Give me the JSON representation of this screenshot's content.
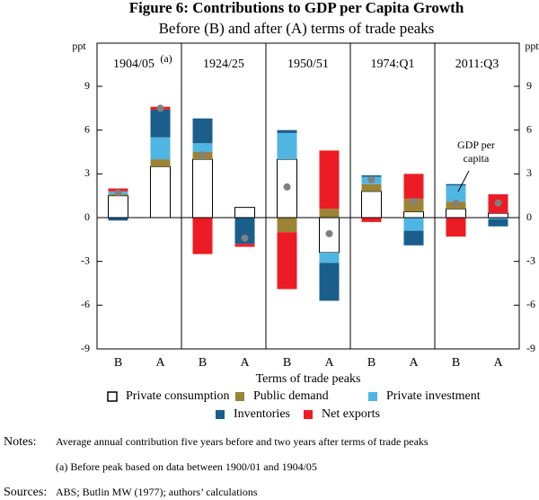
{
  "chart_data": {
    "type": "bar",
    "stacked": true,
    "title": "Figure 6: Contributions to GDP per Capita Growth",
    "subtitle": "Before (B) and after (A) terms of trade peaks",
    "y_label": "ppt",
    "x_label": "Terms of trade peaks",
    "panels": [
      "1904/05",
      "1924/25",
      "1950/51",
      "1974:Q1",
      "2011:Q3"
    ],
    "panel_note": "(a)",
    "categories": [
      "B",
      "A",
      "B",
      "A",
      "B",
      "A",
      "B",
      "A",
      "B",
      "A"
    ],
    "series": [
      {
        "name": "Private consumption",
        "color": "#ffffff",
        "values": [
          1.5,
          3.5,
          4.0,
          0.7,
          4.0,
          -2.4,
          1.8,
          0.4,
          0.6,
          0.3
        ]
      },
      {
        "name": "Public demand",
        "color": "#9c8435",
        "values": [
          0.1,
          0.5,
          0.5,
          0,
          -1.0,
          0.6,
          0.5,
          0.9,
          0.5,
          0
        ]
      },
      {
        "name": "Private investment",
        "color": "#4fb6e3",
        "values": [
          0.2,
          1.5,
          0.6,
          0,
          1.8,
          -0.7,
          0.5,
          -0.9,
          1.1,
          -0.1
        ]
      },
      {
        "name": "Inventories",
        "color": "#1a5e8c",
        "values": [
          -0.2,
          1.9,
          1.7,
          -1.8,
          0.2,
          -2.6,
          0.1,
          -1.0,
          0.1,
          -0.5
        ]
      },
      {
        "name": "Net exports",
        "color": "#ed1c24",
        "values": [
          0.2,
          0.2,
          -2.5,
          -0.2,
          -3.9,
          4.0,
          -0.3,
          1.7,
          -1.3,
          1.3
        ]
      }
    ],
    "gdp": {
      "color": "#808080",
      "values": [
        1.7,
        7.5,
        4.3,
        -1.4,
        2.1,
        -1.1,
        2.6,
        1.1,
        1.0,
        1.0
      ]
    },
    "annotation": [
      "GDP per",
      "capita"
    ],
    "ylim": [
      -9,
      9
    ],
    "yticks": [
      -9,
      -6,
      -3,
      0,
      3,
      6,
      9
    ],
    "notes_label": "Notes:",
    "notes": [
      "Average annual contribution five years before and two years after terms of trade peaks",
      "(a) Before peak based on data between 1900/01 and 1904/05"
    ],
    "sources_label": "Sources:",
    "sources": "ABS; Butlin MW (1977); authors’ calculations"
  }
}
